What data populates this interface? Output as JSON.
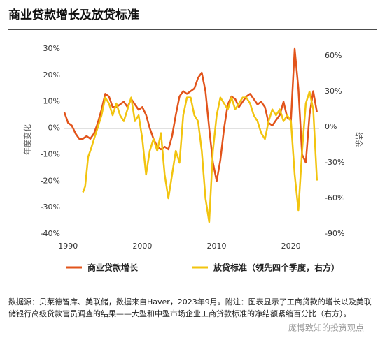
{
  "chart_data": {
    "type": "line",
    "title": "商业贷款增长及放贷标准",
    "y_label": "年度变化",
    "y2_label": "结余",
    "xlim": [
      1989.5,
      2023.8
    ],
    "xticks": [
      1990,
      2000,
      2010,
      2020
    ],
    "ylim": [
      -40,
      30
    ],
    "yticks": [
      {
        "value": -40,
        "label": "-40%"
      },
      {
        "value": -30,
        "label": "-30%"
      },
      {
        "value": -20,
        "label": "-20%"
      },
      {
        "value": -10,
        "label": "-10%"
      },
      {
        "value": 0,
        "label": "0%"
      },
      {
        "value": 10,
        "label": "10%"
      },
      {
        "value": 20,
        "label": "20%"
      },
      {
        "value": 30,
        "label": "30%"
      }
    ],
    "y2lim": [
      -90,
      66
    ],
    "y2ticks": [
      {
        "value": -90,
        "label": "-90%"
      },
      {
        "value": -60,
        "label": "-60%"
      },
      {
        "value": -30,
        "label": "-30%"
      },
      {
        "value": 0,
        "label": "0%"
      },
      {
        "value": 30,
        "label": "30%"
      },
      {
        "value": 60,
        "label": "60%"
      }
    ],
    "series": [
      {
        "name": "商业贷款增长",
        "color": "#e2541b",
        "x": [
          1989.5,
          1990,
          1990.5,
          1991,
          1991.5,
          1992,
          1992.5,
          1993,
          1993.5,
          1994,
          1994.5,
          1995,
          1995.5,
          1996,
          1996.5,
          1997,
          1997.5,
          1998,
          1998.5,
          1999,
          1999.5,
          2000,
          2000.5,
          2001,
          2001.5,
          2002,
          2002.5,
          2003,
          2003.5,
          2004,
          2004.5,
          2005,
          2005.5,
          2006,
          2006.5,
          2007,
          2007.5,
          2008,
          2008.5,
          2009,
          2009.5,
          2010,
          2010.5,
          2011,
          2011.5,
          2012,
          2012.5,
          2013,
          2013.5,
          2014,
          2014.5,
          2015,
          2015.5,
          2016,
          2016.5,
          2017,
          2017.5,
          2018,
          2018.5,
          2019,
          2019.5,
          2020,
          2020.5,
          2021,
          2021.5,
          2022,
          2022.5,
          2023,
          2023.5
        ],
        "values": [
          6,
          2,
          1,
          -2,
          -4,
          -4,
          -3,
          -4,
          -2,
          2,
          7,
          13,
          12,
          8,
          8,
          9,
          10,
          8,
          11,
          9,
          7,
          8,
          5,
          0,
          -4,
          -7,
          -8,
          -7,
          -8,
          -3,
          5,
          12,
          14,
          13,
          14,
          15,
          19,
          21,
          14,
          0,
          -13,
          -20,
          -12,
          0,
          9,
          12,
          11,
          8,
          10,
          12,
          13,
          11,
          9,
          10,
          8,
          2,
          1,
          3,
          5,
          10,
          4,
          3,
          30,
          15,
          -10,
          -13,
          5,
          14,
          6
        ]
      },
      {
        "name": "放贷标准（领先四个季度，右方）",
        "color": "#f2c40f",
        "axis": "y2",
        "x": [
          1992,
          1992.3,
          1992.7,
          1993,
          1993.5,
          1994,
          1994.5,
          1995,
          1995.5,
          1996,
          1996.5,
          1997,
          1997.5,
          1998,
          1998.5,
          1999,
          1999.5,
          2000,
          2000.5,
          2001,
          2001.5,
          2002,
          2002.5,
          2003,
          2003.5,
          2004,
          2004.5,
          2005,
          2005.5,
          2006,
          2006.5,
          2007,
          2007.5,
          2008,
          2008.5,
          2009,
          2009.5,
          2010,
          2010.5,
          2011,
          2011.5,
          2012,
          2012.5,
          2013,
          2013.5,
          2014,
          2014.5,
          2015,
          2015.5,
          2016,
          2016.5,
          2017,
          2017.5,
          2018,
          2018.5,
          2019,
          2019.5,
          2020,
          2020.5,
          2021,
          2021.5,
          2022,
          2022.5,
          2023,
          2023.5
        ],
        "values": [
          -55,
          -50,
          -25,
          -20,
          -10,
          0,
          10,
          25,
          20,
          10,
          20,
          10,
          5,
          15,
          25,
          5,
          10,
          -10,
          -40,
          -20,
          -10,
          -20,
          -5,
          -40,
          -60,
          -40,
          -20,
          -30,
          10,
          25,
          25,
          10,
          5,
          -20,
          -60,
          -80,
          -20,
          10,
          25,
          20,
          15,
          25,
          15,
          20,
          25,
          25,
          20,
          10,
          5,
          -5,
          -10,
          5,
          15,
          10,
          15,
          5,
          10,
          5,
          -40,
          -70,
          -20,
          20,
          30,
          15,
          -45
        ]
      }
    ],
    "note": "数据源：贝莱德智库、美联储，数据来自Haver，2023年9月。附注：图表显示了工商贷款的增长以及美联储银行高级贷款官员调查的结果——大型和中型市场企业工商贷款标准的净结额紧缩百分比（右方）。",
    "watermark": "庞博致知的投资观点"
  }
}
